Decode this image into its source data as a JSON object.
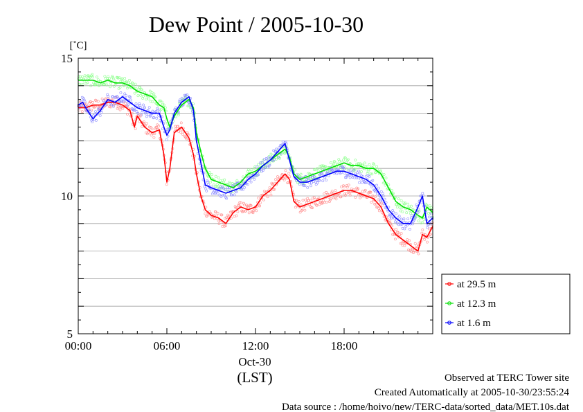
{
  "chart_data": {
    "type": "line",
    "title": "Dew Point / 2005-10-30",
    "ylabel": "[˚C]",
    "ylim": [
      5,
      15
    ],
    "y_ticks": [
      "5",
      "10",
      "15"
    ],
    "xlim_hours": [
      0,
      24
    ],
    "x_ticks": [
      {
        "hour": 0,
        "label": "00:00"
      },
      {
        "hour": 6,
        "label": "06:00"
      },
      {
        "hour": 12,
        "label": "12:00"
      },
      {
        "hour": 18,
        "label": "18:00"
      }
    ],
    "date_label": "Oct-30",
    "timezone_label": "(LST)",
    "grid": "horizontal",
    "legend_position": "bottom-right",
    "series": [
      {
        "name": "at 29.5 m",
        "color": "#ff0000",
        "scatter_color": "#ff8a8a",
        "x": [
          0,
          0.5,
          1,
          1.5,
          2,
          2.5,
          3,
          3.5,
          3.8,
          4,
          4.5,
          5,
          5.5,
          5.8,
          6,
          6.2,
          6.5,
          7,
          7.5,
          7.8,
          8,
          8.3,
          8.6,
          9,
          9.5,
          10,
          10.5,
          11,
          11.5,
          12,
          12.5,
          13,
          13.5,
          14,
          14.3,
          14.6,
          15,
          15.5,
          16,
          16.5,
          17,
          17.5,
          18,
          18.5,
          19,
          19.5,
          20,
          20.5,
          21,
          21.5,
          22,
          22.5,
          23,
          23.3,
          23.6,
          24
        ],
        "y": [
          13.2,
          13.2,
          13.3,
          13.3,
          13.4,
          13.4,
          13.3,
          13.1,
          12.5,
          12.9,
          12.5,
          12.3,
          12.4,
          11.5,
          10.5,
          11.0,
          12.3,
          12.5,
          12.1,
          11.5,
          10.8,
          10.0,
          9.5,
          9.3,
          9.2,
          9.0,
          9.4,
          9.6,
          9.5,
          9.6,
          10.0,
          10.2,
          10.5,
          10.8,
          10.6,
          9.8,
          9.6,
          9.7,
          9.8,
          9.9,
          10.0,
          10.1,
          10.2,
          10.2,
          10.1,
          10.0,
          9.9,
          9.6,
          9.0,
          8.6,
          8.4,
          8.2,
          8.0,
          8.6,
          8.5,
          8.9
        ]
      },
      {
        "name": "at 12.3 m",
        "color": "#00e000",
        "scatter_color": "#8aff8a",
        "x": [
          0,
          0.5,
          1,
          1.5,
          2,
          2.5,
          3,
          3.5,
          4,
          4.5,
          5,
          5.5,
          5.8,
          6,
          6.2,
          6.5,
          7,
          7.5,
          7.8,
          8,
          8.3,
          8.6,
          9,
          9.5,
          10,
          10.5,
          11,
          11.5,
          12,
          12.5,
          13,
          13.5,
          14,
          14.3,
          14.6,
          15,
          15.5,
          16,
          16.5,
          17,
          17.5,
          18,
          18.5,
          19,
          19.5,
          20,
          20.5,
          21,
          21.5,
          22,
          22.5,
          23,
          23.3,
          23.6,
          24
        ],
        "y": [
          14.2,
          14.2,
          14.2,
          14.1,
          14.2,
          14.1,
          14.1,
          14.0,
          13.8,
          13.7,
          13.6,
          13.3,
          13.2,
          12.8,
          12.5,
          12.9,
          13.3,
          13.5,
          13.2,
          12.3,
          11.6,
          11.0,
          10.6,
          10.5,
          10.4,
          10.3,
          10.5,
          10.8,
          10.9,
          11.1,
          11.3,
          11.5,
          11.7,
          11.4,
          10.8,
          10.6,
          10.7,
          10.8,
          10.9,
          11.0,
          11.1,
          11.2,
          11.1,
          11.1,
          11.0,
          11.0,
          10.8,
          10.3,
          9.8,
          9.6,
          9.5,
          9.3,
          9.2,
          9.6,
          9.4
        ]
      },
      {
        "name": "at 1.6 m",
        "color": "#0000ff",
        "scatter_color": "#8a8aff",
        "x": [
          0,
          0.3,
          0.5,
          1,
          1.5,
          2,
          2.5,
          3,
          3.5,
          4,
          4.5,
          5,
          5.5,
          5.8,
          6,
          6.2,
          6.5,
          7,
          7.5,
          7.8,
          8,
          8.3,
          8.6,
          9,
          9.5,
          10,
          10.5,
          11,
          11.5,
          12,
          12.5,
          13,
          13.5,
          14,
          14.3,
          14.6,
          15,
          15.5,
          16,
          16.5,
          17,
          17.5,
          18,
          18.5,
          19,
          19.5,
          20,
          20.5,
          21,
          21.5,
          22,
          22.5,
          23,
          23.3,
          23.6,
          24
        ],
        "y": [
          13.3,
          13.4,
          13.2,
          12.8,
          13.1,
          13.5,
          13.4,
          13.6,
          13.4,
          13.2,
          13.1,
          13.0,
          13.0,
          12.5,
          12.2,
          12.4,
          13.0,
          13.4,
          13.6,
          13.1,
          12.0,
          11.2,
          10.4,
          10.3,
          10.2,
          10.1,
          10.2,
          10.3,
          10.6,
          10.8,
          11.1,
          11.3,
          11.6,
          11.9,
          11.3,
          10.7,
          10.5,
          10.5,
          10.6,
          10.7,
          10.8,
          10.9,
          10.9,
          10.8,
          10.7,
          10.6,
          10.4,
          10.0,
          9.5,
          9.2,
          9.0,
          9.0,
          9.6,
          10.0,
          9.0,
          9.2
        ]
      }
    ]
  },
  "footer": {
    "line1": "Observed at TERC Tower site",
    "line2": "Created Automatically at 2005-10-30/23:55:24",
    "line3": "Data source : /home/hoivo/new/TERC-data/sorted_data/MET.10s.dat"
  }
}
